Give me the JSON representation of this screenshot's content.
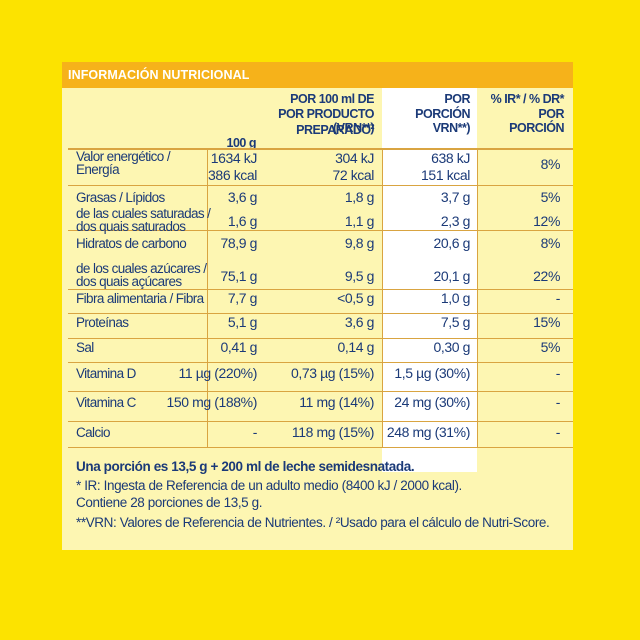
{
  "title": "INFORMACIÓN NUTRICIONAL",
  "headers": {
    "per100g": "POR 100 ml DE\nPOR PRODUCTO PREPARADO",
    "per100g_sup": "2",
    "per100g_tail": "\n100 g",
    "per100g_suffix": "(VRN**)",
    "portion": "POR\nPORCIÓN\nVRN**)",
    "ir": "% IR* / % DR*\nPOR\nPORCIÓN"
  },
  "rows": [
    {
      "label": "Valor energético /\nEnergía",
      "c1": "1634 kJ\n386 kcal",
      "c2": "304 kJ\n72 kcal",
      "c3": "638 kJ\n151 kcal",
      "c4": "8%"
    },
    {
      "label": "Grasas / Lípidos",
      "c1": "3,6 g",
      "c2": "1,8 g",
      "c3": "3,7 g",
      "c4": "5%"
    },
    {
      "label": "de las cuales saturadas /\ndos quais saturados",
      "c1": "1,6 g",
      "c2": "1,1 g",
      "c3": "2,3 g",
      "c4": "12%"
    },
    {
      "label": "Hidratos de carbono",
      "c1": "78,9 g",
      "c2": "9,8 g",
      "c3": "20,6 g",
      "c4": "8%"
    },
    {
      "label": "de los cuales azúcares /\ndos quais açúcares",
      "c1": "75,1 g",
      "c2": "9,5 g",
      "c3": "20,1 g",
      "c4": "22%"
    },
    {
      "label": "Fibra alimentaria / Fibra",
      "c1": "7,7 g",
      "c2": "<0,5 g",
      "c3": "1,0 g",
      "c4": "-"
    },
    {
      "label": "Proteínas",
      "c1": "5,1 g",
      "c2": "3,6 g",
      "c3": "7,5 g",
      "c4": "15%"
    },
    {
      "label": "Sal",
      "c1": "0,41 g",
      "c2": "0,14 g",
      "c3": "0,30 g",
      "c4": "5%"
    },
    {
      "label": "Vitamina D",
      "c1": "11 µg (220%)",
      "c2": "0,73 µg (15%)",
      "c3": "1,5 µg (30%)",
      "c4": "-"
    },
    {
      "label": "Vitamina C",
      "c1": "150 mg (188%)",
      "c2": "11 mg (14%)",
      "c3": "24 mg (30%)",
      "c4": "-"
    },
    {
      "label": "Calcio",
      "c1": "-",
      "c2": "118 mg (15%)",
      "c3": "248 mg (31%)",
      "c4": "-"
    }
  ],
  "footer": {
    "portion_note": "Una porción es 13,5 g + 200 ml de leche semidesnatada.",
    "ir_note": "* IR: Ingesta de Referencia de un adulto medio (8400 kJ / 2000 kcal).",
    "contains": "Contiene 28 porciones de 13,5 g.",
    "vrn_note": "**VRN: Valores de Referencia de Nutrientes. / ²Usado para el cálculo de Nutri-Score."
  },
  "colors": {
    "background": "#fce300",
    "panel": "#fdf6b2",
    "title_bar": "#f6b21a",
    "text": "#1b3a78",
    "rule": "#d9a441"
  }
}
